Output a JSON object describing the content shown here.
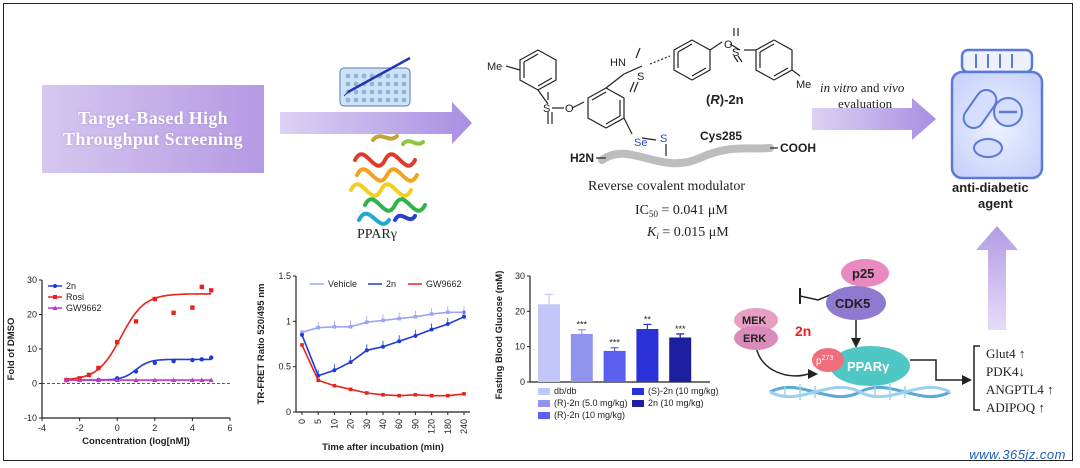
{
  "colors": {
    "arrow": "#b8a3e8",
    "blue": "#1f3ad6",
    "red": "#e8231e",
    "magenta": "#c633d1",
    "lightblue": "#9aa6f2",
    "bottle": "#5a7ad8"
  },
  "top": {
    "hts_line1": "Target-Based High",
    "hts_line2": "Throughput Screening",
    "ppar_label": "PPARγ",
    "compound": "(R)-2n",
    "compound_prefix": "(",
    "compound_R": "R",
    "compound_suffix": ")-2n",
    "cys": "Cys285",
    "h2n": "H2N",
    "cooh": "COOH",
    "me1": "Me",
    "me2": "Me",
    "hn": "HN",
    "se": "Se",
    "s_link": "S",
    "modulator": "Reverse covalent modulator",
    "ic50": "IC50 = 0.041 μM",
    "ki": "Ki = 0.015 μM",
    "eval_line1": "in vitro and vivo",
    "eval_line2": "evaluation",
    "agent_line1": "anti-diabetic",
    "agent_line2": "agent"
  },
  "pathway": {
    "p25": "p25",
    "cdk5": "CDK5",
    "mek": "MEK",
    "erk": "ERK",
    "compound": "2n",
    "p273": "p273",
    "ppar": "PPARγ",
    "genes": [
      "Glut4 ↑",
      "PDK4↓",
      "ANGPTL4 ↑",
      "ADIPOQ ↑"
    ]
  },
  "watermark": "www.365jz.com",
  "chart_data": [
    {
      "type": "scatter",
      "xlabel": "Concentration (log[nM])",
      "ylabel": "Fold of DMSO",
      "xlim": [
        -4,
        6
      ],
      "ylim": [
        -10,
        30
      ],
      "xticks": [
        -4,
        -2,
        0,
        2,
        4,
        6
      ],
      "yticks": [
        -10,
        0,
        10,
        20,
        30
      ],
      "legend": "top-left",
      "series": [
        {
          "name": "2n",
          "color": "#1f3ad6",
          "x": [
            -2.7,
            -2,
            -1,
            0,
            1,
            2,
            3,
            4,
            4.5,
            5
          ],
          "y": [
            1,
            1,
            1,
            1.5,
            3.5,
            6,
            6.5,
            6.8,
            7,
            7.5
          ]
        },
        {
          "name": "Rosi",
          "color": "#e8231e",
          "x": [
            -2.7,
            -2,
            -1.5,
            -1,
            0,
            1,
            2,
            3,
            4,
            4.5,
            5
          ],
          "y": [
            1,
            1.5,
            2.5,
            4.5,
            12,
            18,
            24.5,
            20.5,
            22,
            28,
            27
          ]
        },
        {
          "name": "GW9662",
          "color": "#c633d1",
          "x": [
            -2.7,
            -2,
            -1,
            0,
            1,
            2,
            3,
            4,
            4.5,
            5
          ],
          "y": [
            1,
            1,
            1,
            1,
            1,
            1,
            1,
            1,
            1,
            1
          ]
        }
      ]
    },
    {
      "type": "line",
      "xlabel": "Time after incubation (min)",
      "ylabel": "TR-FRET Ratio 520/495 nm",
      "categories": [
        "0",
        "5",
        "10",
        "20",
        "30",
        "40",
        "60",
        "90",
        "120",
        "180",
        "240"
      ],
      "ylim": [
        0,
        1.5
      ],
      "yticks": [
        0,
        0.5,
        1,
        1.5
      ],
      "legend": "top",
      "series": [
        {
          "name": "Vehicle",
          "color": "#9aa6f2",
          "values": [
            0.88,
            0.93,
            0.94,
            0.94,
            0.99,
            1.01,
            1.03,
            1.05,
            1.08,
            1.1,
            1.1
          ]
        },
        {
          "name": "2n",
          "color": "#1f3ad6",
          "values": [
            0.85,
            0.4,
            0.46,
            0.55,
            0.68,
            0.72,
            0.78,
            0.84,
            0.91,
            0.97,
            1.05
          ]
        },
        {
          "name": "GW9662",
          "color": "#e8231e",
          "values": [
            0.74,
            0.35,
            0.29,
            0.25,
            0.21,
            0.19,
            0.18,
            0.19,
            0.18,
            0.18,
            0.2
          ]
        }
      ]
    },
    {
      "type": "bar",
      "ylabel": "Fasting Blood Glucose (mM)",
      "ylim": [
        0,
        30
      ],
      "yticks": [
        0,
        10,
        20,
        30
      ],
      "categories": [
        "db/db",
        "(R)-2n (5.0 mg/kg)",
        "(R)-2n (10 mg/kg)",
        "(S)-2n (10 mg/kg)",
        "2n (10 mg/kg)"
      ],
      "values": [
        22,
        13.6,
        8.8,
        15,
        12.6
      ],
      "errors": [
        2.8,
        1.2,
        0.9,
        1.3,
        1.0
      ],
      "annotations": [
        "",
        "***",
        "***",
        "**",
        "***"
      ],
      "colors": [
        "#c3c6f8",
        "#8f94ef",
        "#5a5ff0",
        "#2a31d8",
        "#1b1fa0"
      ],
      "legend": "bottom"
    }
  ]
}
